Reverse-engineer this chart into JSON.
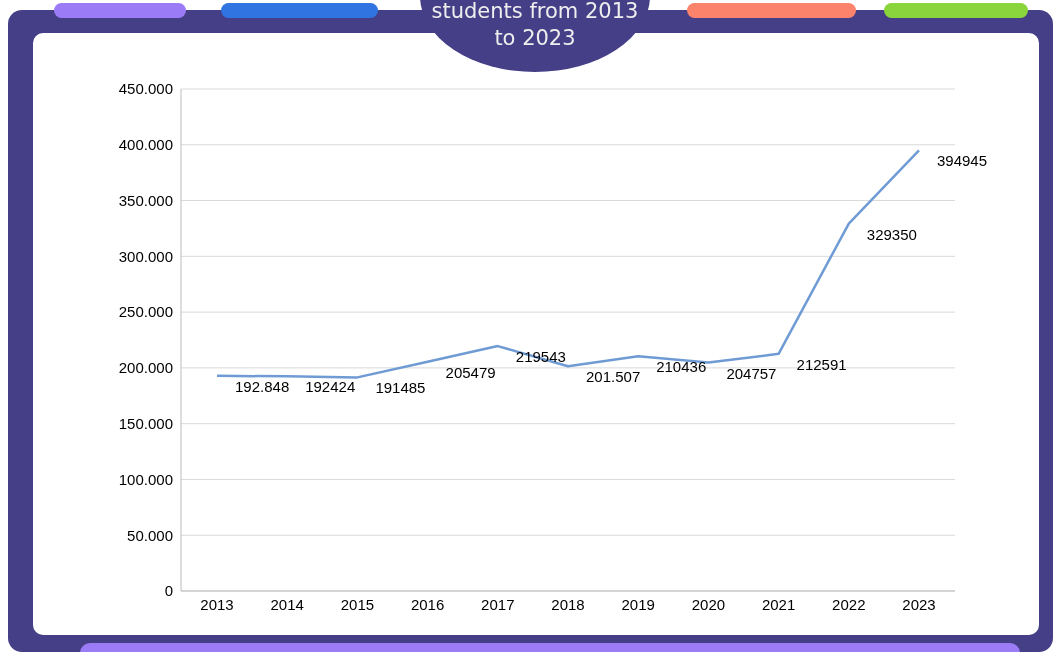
{
  "chart_data": {
    "type": "line",
    "title": "students from 2013 to 2023",
    "categories": [
      "2013",
      "2014",
      "2015",
      "2016",
      "2017",
      "2018",
      "2019",
      "2020",
      "2021",
      "2022",
      "2023"
    ],
    "series": [
      {
        "color": "#6f9bd4",
        "values": [
          192848,
          192424,
          191485,
          205479,
          219543,
          201507,
          210436,
          204757,
          212591,
          329350,
          394945
        ],
        "value_labels": [
          "192.848",
          "192424",
          "191485",
          "205479",
          "219543",
          "201.507",
          "210436",
          "204757",
          "212591",
          "329350",
          "394945"
        ]
      }
    ],
    "ylim": [
      0,
      450000
    ],
    "yticks": [
      {
        "value": 0,
        "label": "0"
      },
      {
        "value": 50000,
        "label": "50.000"
      },
      {
        "value": 100000,
        "label": "100.000"
      },
      {
        "value": 150000,
        "label": "150.000"
      },
      {
        "value": 200000,
        "label": "200.000"
      },
      {
        "value": 250000,
        "label": "250.000"
      },
      {
        "value": 300000,
        "label": "300.000"
      },
      {
        "value": 350000,
        "label": "350.000"
      },
      {
        "value": 400000,
        "label": "400.000"
      },
      {
        "value": 450000,
        "label": "450.000"
      }
    ],
    "grid": "y",
    "marker": "none",
    "line_style": "solid"
  }
}
